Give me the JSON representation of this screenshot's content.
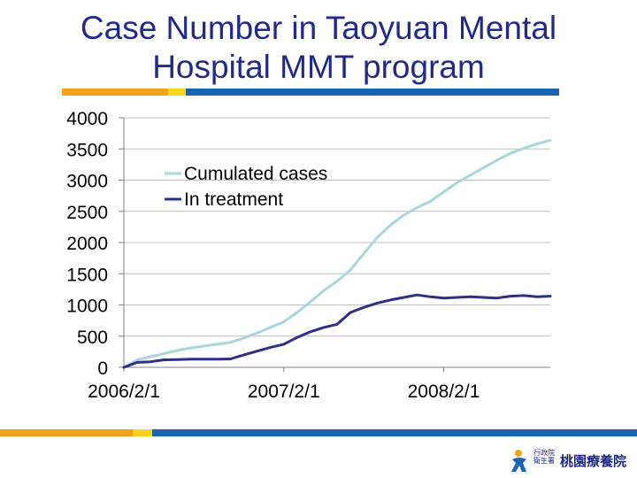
{
  "slide": {
    "title_line1": "Case Number in Taoyuan Mental",
    "title_line2": "Hospital MMT program",
    "logo_text_line1": "行政院",
    "logo_text_line2": "衛生署",
    "logo_name": "桃園療養院"
  },
  "colors": {
    "title": "#1f2a8a",
    "accent_orange": "#f2a31b",
    "accent_yellow": "#f7d51a",
    "accent_blue": "#1a63b5",
    "series_cumulated": "#a8d6dd",
    "series_treatment": "#2e3088",
    "grid": "#bfbfbf",
    "axis": "#808080"
  },
  "chart_data": {
    "type": "line",
    "title": "",
    "xlabel": "",
    "ylabel": "",
    "ylim": [
      0,
      4000
    ],
    "yticks": [
      "4000",
      "3500",
      "3000",
      "2500",
      "2000",
      "1500",
      "1000",
      "500",
      "0"
    ],
    "ytick_values": [
      4000,
      3500,
      3000,
      2500,
      2000,
      1500,
      1000,
      500,
      0
    ],
    "x_tick_labels": [
      "2006/2/1",
      "2007/2/1",
      "2008/2/1"
    ],
    "x_tick_months": [
      0,
      12,
      24
    ],
    "x_range_months": [
      0,
      32
    ],
    "legend_position": "upper-left",
    "series": [
      {
        "name": "Cumulated cases",
        "color": "#a8d6dd",
        "months": [
          0,
          1,
          2,
          3,
          4,
          5,
          6,
          7,
          8,
          9,
          10,
          11,
          12,
          13,
          14,
          15,
          16,
          17,
          18,
          19,
          20,
          21,
          22,
          23,
          24,
          25,
          26,
          27,
          28,
          29,
          30,
          31,
          32
        ],
        "values": [
          0,
          120,
          170,
          220,
          270,
          310,
          340,
          370,
          400,
          470,
          550,
          640,
          730,
          880,
          1050,
          1230,
          1380,
          1560,
          1820,
          2080,
          2280,
          2440,
          2560,
          2660,
          2810,
          2960,
          3080,
          3200,
          3320,
          3430,
          3510,
          3580,
          3640
        ]
      },
      {
        "name": "In treatment",
        "color": "#2e3088",
        "months": [
          0,
          1,
          2,
          3,
          4,
          5,
          6,
          7,
          8,
          9,
          10,
          11,
          12,
          13,
          14,
          15,
          16,
          17,
          18,
          19,
          20,
          21,
          22,
          23,
          24,
          25,
          26,
          27,
          28,
          29,
          30,
          31,
          32
        ],
        "values": [
          0,
          80,
          90,
          120,
          125,
          130,
          130,
          130,
          135,
          200,
          260,
          320,
          370,
          480,
          570,
          640,
          690,
          880,
          960,
          1030,
          1080,
          1120,
          1160,
          1130,
          1110,
          1120,
          1130,
          1120,
          1110,
          1140,
          1150,
          1130,
          1140
        ]
      }
    ]
  }
}
